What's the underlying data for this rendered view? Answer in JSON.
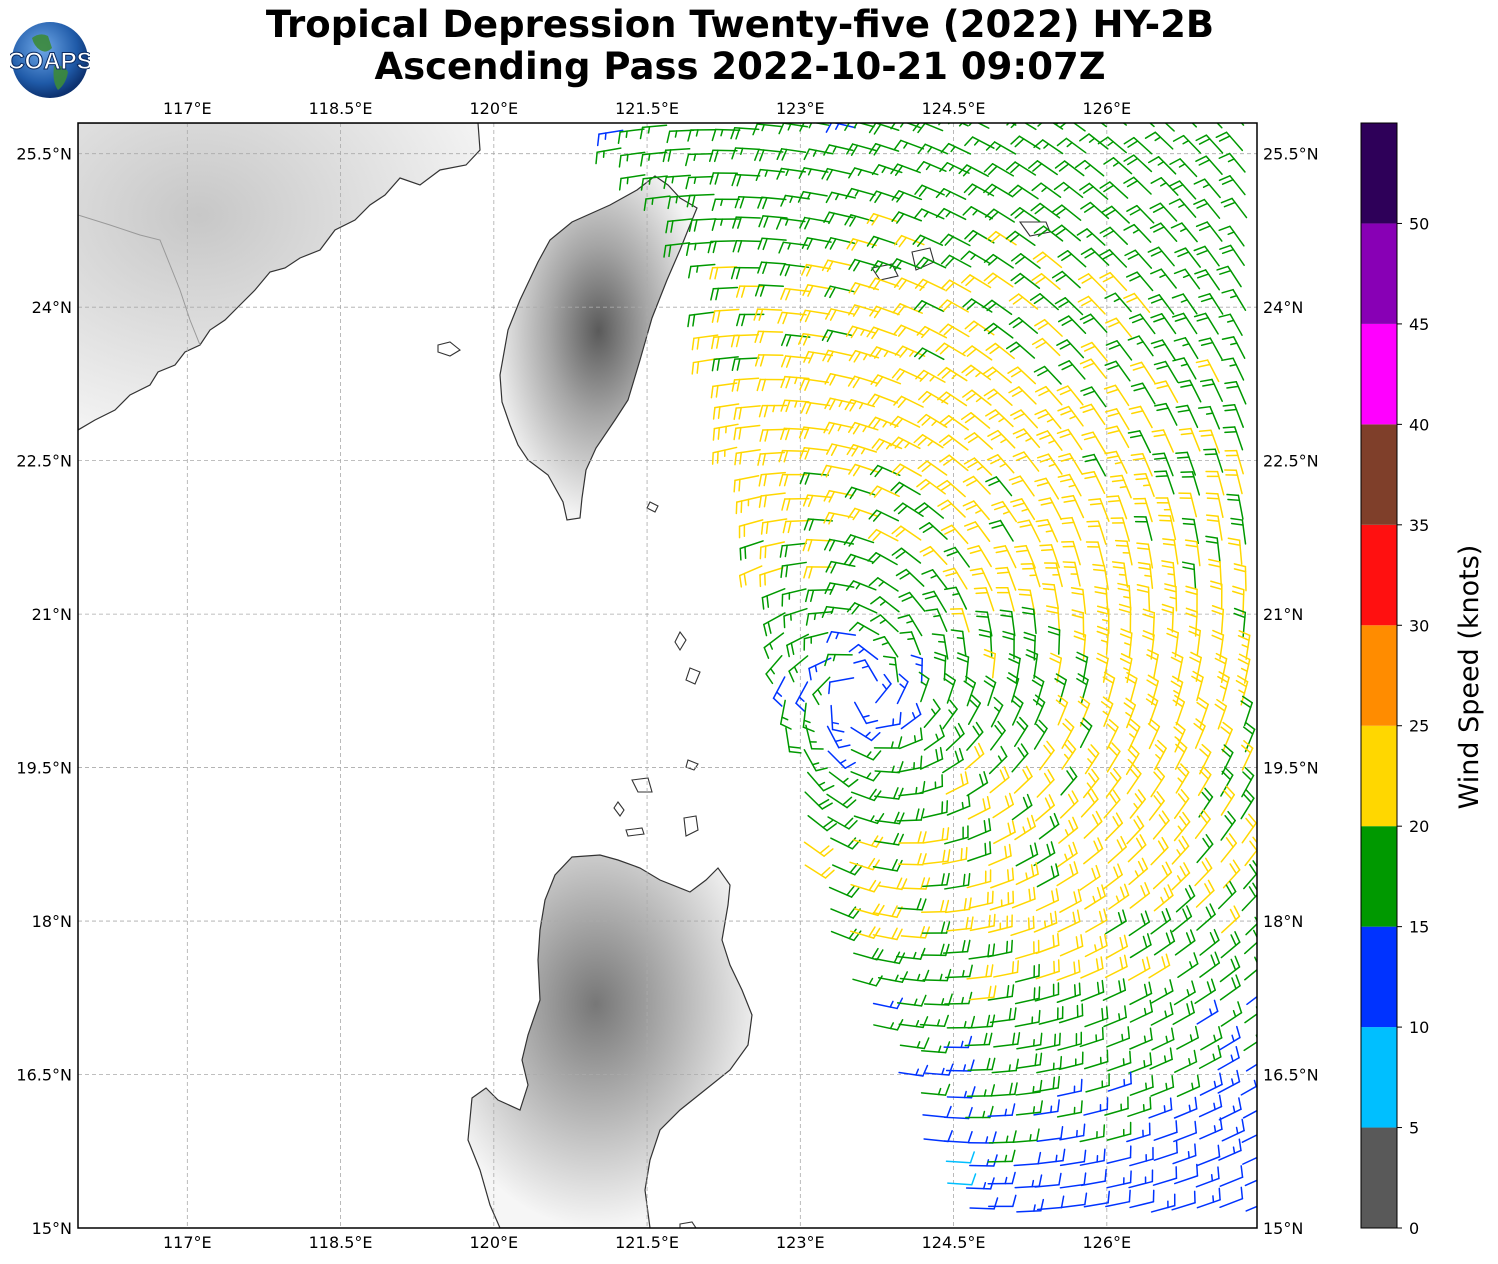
{
  "title_line1": "Tropical Depression Twenty-five (2022) HY-2B",
  "title_line2": "Ascending Pass 2022-10-21 09:07Z",
  "logo_text": "COAPS",
  "map": {
    "lon_ticks": [
      "117°E",
      "118.5°E",
      "120°E",
      "121.5°E",
      "123°E",
      "124.5°E",
      "126°E"
    ],
    "lat_ticks": [
      "25.5°N",
      "24°N",
      "22.5°N",
      "21°N",
      "19.5°N",
      "18°N",
      "16.5°N",
      "15°N"
    ],
    "lon_values": [
      117,
      118.5,
      120,
      121.5,
      123,
      124.5,
      126
    ],
    "lat_values": [
      25.5,
      24,
      22.5,
      21,
      19.5,
      18,
      16.5,
      15
    ],
    "extent": {
      "lon_min": 115.93,
      "lon_max": 127.47,
      "lat_min": 15,
      "lat_max": 25.8
    },
    "gridlines": true,
    "circulation_center": {
      "lon": 123.6,
      "lat": 20.2
    }
  },
  "colorbar": {
    "label": "Wind Speed (knots)",
    "tick_labels": [
      "0",
      "5",
      "10",
      "15",
      "20",
      "25",
      "30",
      "35",
      "40",
      "45",
      "50"
    ],
    "bounds": [
      0,
      5,
      10,
      15,
      20,
      25,
      30,
      35,
      40,
      45,
      50,
      55
    ],
    "colors": [
      "#595959",
      "#00bfff",
      "#0033ff",
      "#009900",
      "#ffd700",
      "#ff8c00",
      "#ff1010",
      "#7f3f2a",
      "#ff00ff",
      "#8800b5",
      "#2e0059"
    ]
  }
}
